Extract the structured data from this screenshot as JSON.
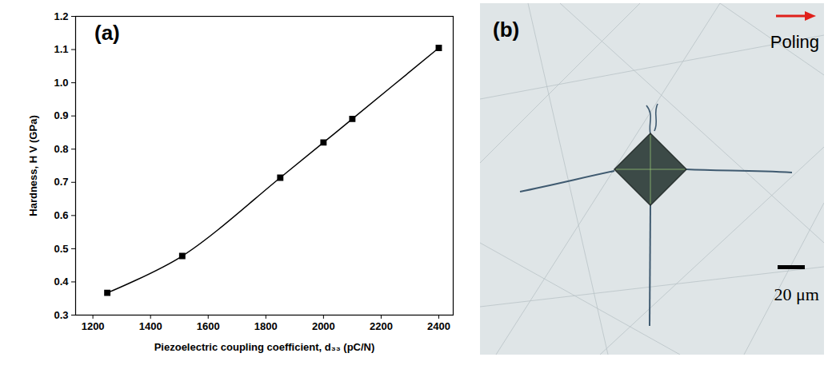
{
  "chart_data": {
    "type": "line",
    "panel_label": "(a)",
    "x_label": "Piezoelectric coupling coefficient, d₃₃ (pC/N)",
    "y_label": "Hardness, H V (GPa)",
    "x": [
      1250,
      1510,
      1850,
      2000,
      2100,
      2400
    ],
    "values": [
      0.367,
      0.478,
      0.714,
      0.82,
      0.891,
      1.105
    ],
    "color": "#000000",
    "marker": "square",
    "line_style": "solid",
    "xlim": [
      1140,
      2450
    ],
    "xticks": [
      1200,
      1400,
      1600,
      1800,
      2000,
      2200,
      2400
    ],
    "ylim": [
      0.3,
      1.2
    ],
    "yticks": [
      0.3,
      0.4,
      0.5,
      0.6,
      0.7,
      0.8,
      0.9,
      {
        "value": 1,
        "label": "1.0"
      },
      1.1,
      1.2
    ],
    "grid": false
  },
  "image": {
    "panel_label": "(b)",
    "arrow_label": "Poling",
    "scale_bar_label": "20 μm"
  }
}
